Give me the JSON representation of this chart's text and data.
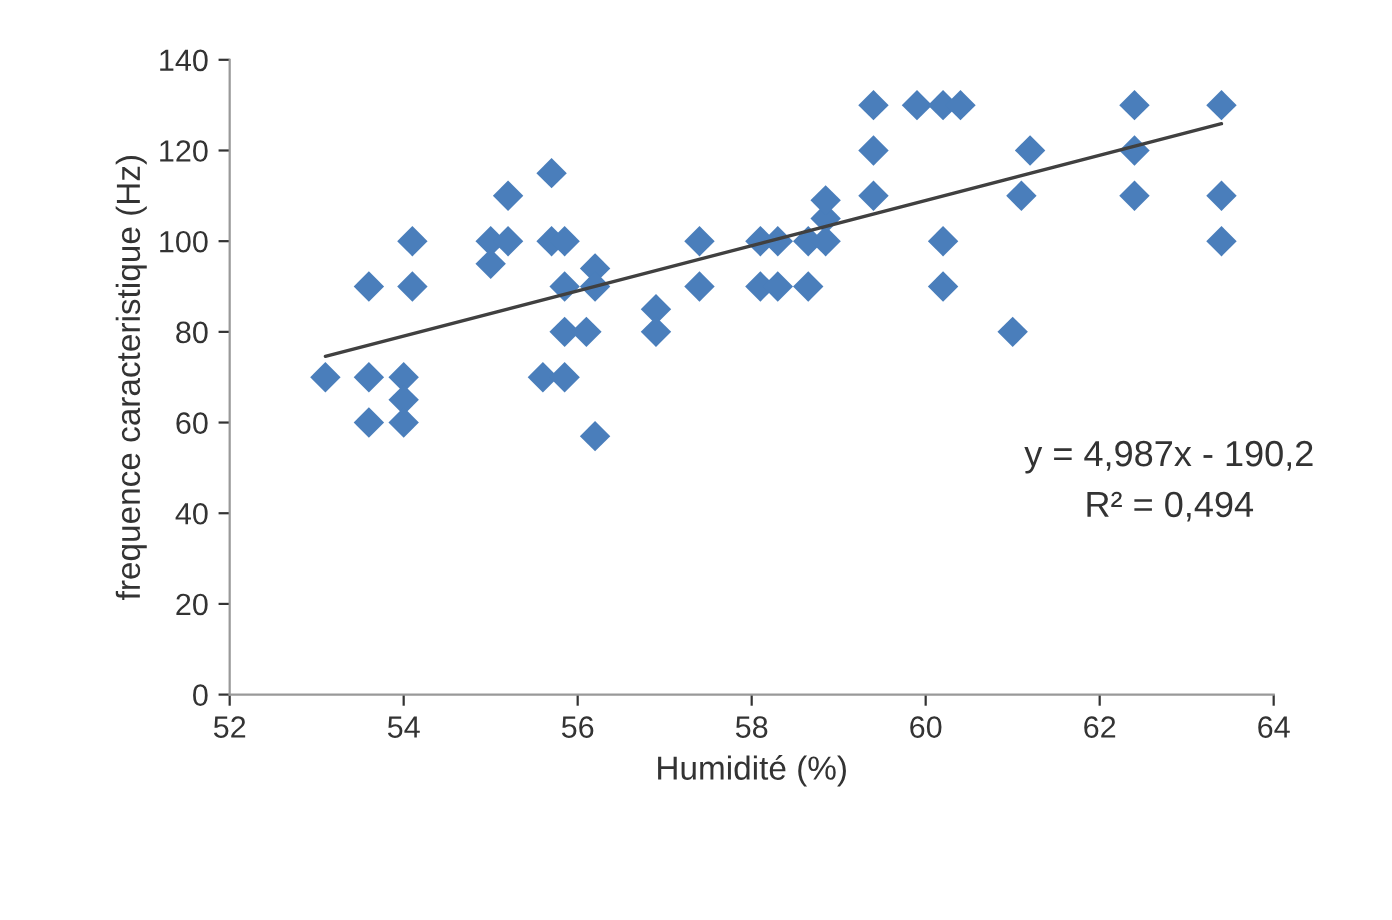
{
  "chart_data": {
    "type": "scatter",
    "xlabel": "Humidité (%)",
    "ylabel": "frequence caracteristique (Hz)",
    "xlim": [
      52,
      64
    ],
    "xticks": [
      52,
      54,
      56,
      58,
      60,
      62,
      64
    ],
    "ylim": [
      0,
      140
    ],
    "yticks": [
      0,
      20,
      40,
      60,
      80,
      100,
      120,
      140
    ],
    "grid": false,
    "legend": false,
    "marker": "diamond",
    "series": [
      {
        "color": "#4a7ebb",
        "x": [
          53.1,
          53.6,
          53.6,
          53.6,
          54.0,
          54.0,
          54.0,
          54.1,
          54.1,
          55.0,
          55.0,
          55.2,
          55.2,
          55.6,
          55.7,
          55.7,
          55.85,
          55.85,
          55.85,
          55.85,
          56.1,
          56.2,
          56.2,
          56.2,
          56.9,
          56.9,
          57.4,
          57.4,
          58.1,
          58.1,
          58.3,
          58.3,
          58.65,
          58.65,
          58.85,
          58.85,
          58.85,
          59.4,
          59.4,
          59.4,
          59.9,
          60.2,
          60.2,
          60.2,
          60.4,
          61.0,
          61.1,
          61.2,
          62.4,
          62.4,
          62.4,
          63.4,
          63.4,
          63.4
        ],
        "values": [
          70,
          90,
          70,
          60,
          70,
          65,
          60,
          100,
          90,
          100,
          95,
          110,
          100,
          70,
          115,
          100,
          100,
          90,
          80,
          70,
          80,
          94,
          90,
          57,
          85,
          80,
          100,
          90,
          100,
          90,
          100,
          90,
          100,
          90,
          105,
          109,
          100,
          130,
          120,
          110,
          130,
          130,
          100,
          90,
          130,
          80,
          110,
          120,
          130,
          120,
          110,
          130,
          110,
          100
        ]
      },
      {
        "type": "line",
        "color": "#404040",
        "marker": "none",
        "x": [
          53.1,
          63.4
        ],
        "values": [
          74.6,
          125.9
        ]
      }
    ],
    "annotations": [
      "y = 4,987x - 190,2",
      "R² = 0,494"
    ]
  }
}
